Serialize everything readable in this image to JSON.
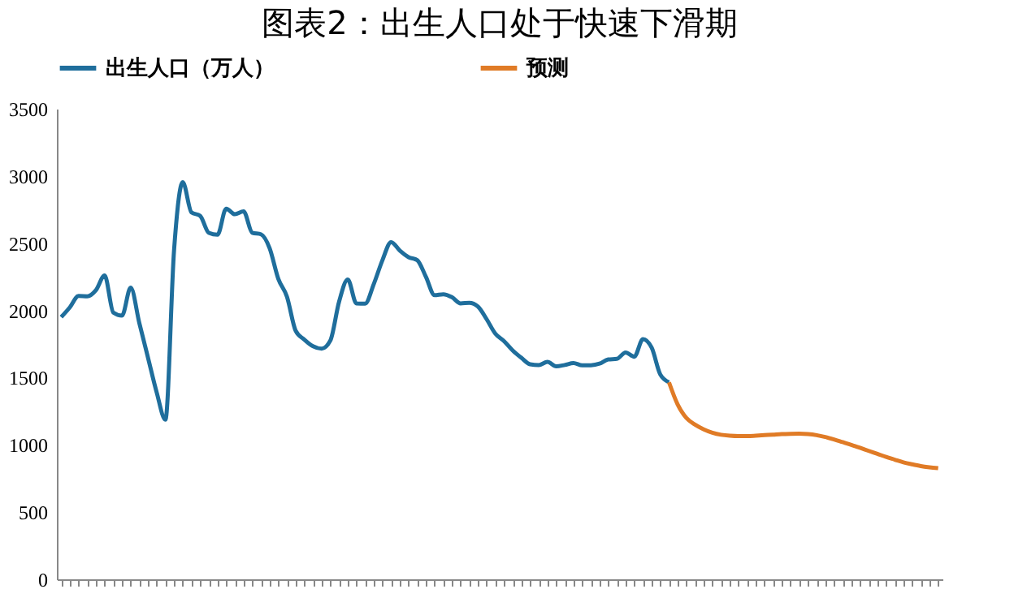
{
  "chart_data": {
    "type": "line",
    "title": "图表2：出生人口处于快速下滑期",
    "categories": [
      null,
      null,
      null,
      null,
      null,
      null,
      null,
      null,
      null,
      null,
      null,
      null,
      null,
      null,
      null,
      null,
      null,
      null,
      null,
      null,
      null,
      null,
      null,
      null,
      null,
      null,
      null,
      null,
      null,
      null,
      null,
      null,
      null,
      null,
      null,
      null,
      null,
      null,
      null,
      null,
      null,
      null,
      null,
      null,
      null,
      null,
      null,
      null,
      null,
      null,
      null,
      null,
      null,
      null,
      null,
      null,
      null,
      null,
      null,
      null,
      null,
      null,
      null,
      null,
      null,
      null,
      null,
      null,
      null,
      null,
      null,
      null,
      null,
      null,
      null,
      null,
      null,
      null,
      null,
      null,
      null,
      null,
      null,
      null,
      null,
      null,
      null,
      null,
      null,
      null,
      null,
      null,
      null,
      null,
      null,
      null,
      null,
      null,
      null,
      null,
      null,
      null
    ],
    "series": [
      {
        "name": "出生人口（万人）",
        "color": "#1f6e9c",
        "values": [
          1950,
          2023,
          2107,
          2105,
          2151,
          2260,
          1984,
          1961,
          2169,
          1905,
          1647,
          1389,
          1187,
          2451,
          2954,
          2729,
          2704,
          2577,
          2563,
          2757,
          2715,
          2736,
          2578,
          2566,
          2463,
          2235,
          2102,
          1849,
          1783,
          1733,
          1715,
          1776,
          2064,
          2230,
          2052,
          2050,
          2196,
          2374,
          2508,
          2445,
          2396,
          2374,
          2250,
          2113,
          2120,
          2098,
          2052,
          2057,
          2028,
          1934,
          1827,
          1771,
          1702,
          1647,
          1599,
          1593,
          1617,
          1584,
          1594,
          1608,
          1591,
          1592,
          1604,
          1635,
          1640,
          1687,
          1655,
          1786,
          1723,
          1523,
          1465,
          null,
          null,
          null,
          null,
          null,
          null,
          null,
          null,
          null,
          null,
          null,
          null,
          null,
          null,
          null,
          null,
          null,
          null,
          null,
          null,
          null,
          null,
          null,
          null,
          null,
          null,
          null,
          null,
          null,
          null,
          null
        ]
      },
      {
        "name": "预测",
        "color": "#e07b26",
        "values": [
          null,
          null,
          null,
          null,
          null,
          null,
          null,
          null,
          null,
          null,
          null,
          null,
          null,
          null,
          null,
          null,
          null,
          null,
          null,
          null,
          null,
          null,
          null,
          null,
          null,
          null,
          null,
          null,
          null,
          null,
          null,
          null,
          null,
          null,
          null,
          null,
          null,
          null,
          null,
          null,
          null,
          null,
          null,
          null,
          null,
          null,
          null,
          null,
          null,
          null,
          null,
          null,
          null,
          null,
          null,
          null,
          null,
          null,
          null,
          null,
          null,
          null,
          null,
          null,
          null,
          null,
          null,
          null,
          null,
          null,
          1465,
          1300,
          1200,
          1150,
          1115,
          1090,
          1075,
          1068,
          1065,
          1065,
          1068,
          1072,
          1076,
          1080,
          1082,
          1083,
          1080,
          1072,
          1058,
          1040,
          1020,
          1000,
          978,
          955,
          933,
          910,
          890,
          870,
          855,
          842,
          833,
          826
        ]
      }
    ],
    "ylim": [
      0,
      3500
    ],
    "yticks": [
      0,
      500,
      1000,
      1500,
      2000,
      2500,
      3000,
      3500
    ],
    "grid": false,
    "legend": "top",
    "tick_labels": "y",
    "line_style": "solid"
  }
}
